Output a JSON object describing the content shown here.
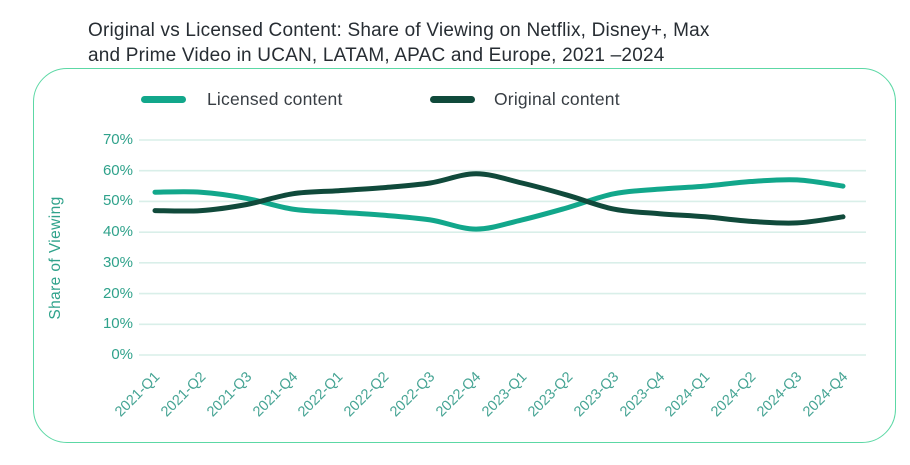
{
  "title_lines": [
    "Original vs Licensed Content: Share of Viewing on Netflix, Disney+, Max",
    "and Prime Video in UCAN, LATAM, APAC and Europe, 2021 –2024"
  ],
  "colors": {
    "licensed_line": "#12a78b",
    "original_line": "#104a3b",
    "card_border": "#5cd8a5",
    "gridline": "#d9efe9",
    "axis_text": "#2fa28b",
    "title_text": "#272d33"
  },
  "chart_data": {
    "type": "line",
    "title": "Original vs Licensed Content: Share of Viewing on Netflix, Disney+, Max and Prime Video in UCAN, LATAM, APAC and Europe, 2021 –2024",
    "xlabel": "",
    "ylabel": "Share of Viewing",
    "ylim": [
      0,
      70
    ],
    "grid": true,
    "legend_position": "top",
    "ytick_values": [
      0,
      10,
      20,
      30,
      40,
      50,
      60,
      70
    ],
    "ytick_labels": [
      "0%",
      "10%",
      "20%",
      "30%",
      "40%",
      "50%",
      "60%",
      "70%"
    ],
    "categories": [
      "2021-Q1",
      "2021-Q2",
      "2021-Q3",
      "2021-Q4",
      "2022-Q1",
      "2022-Q2",
      "2022-Q3",
      "2022-Q4",
      "2023-Q1",
      "2023-Q2",
      "2023-Q3",
      "2023-Q4",
      "2024-Q1",
      "2024-Q2",
      "2024-Q3",
      "2024-Q4"
    ],
    "series": [
      {
        "name": "Licensed content",
        "color": "#12a78b",
        "values": [
          53,
          53,
          51,
          47.5,
          46.5,
          45.5,
          44,
          41,
          44,
          48,
          52.5,
          54,
          55,
          56.5,
          57,
          55
        ]
      },
      {
        "name": "Original content",
        "color": "#104a3b",
        "values": [
          47,
          47,
          49,
          52.5,
          53.5,
          54.5,
          56,
          59,
          56,
          52,
          47.5,
          46,
          45,
          43.5,
          43,
          45
        ]
      }
    ]
  }
}
